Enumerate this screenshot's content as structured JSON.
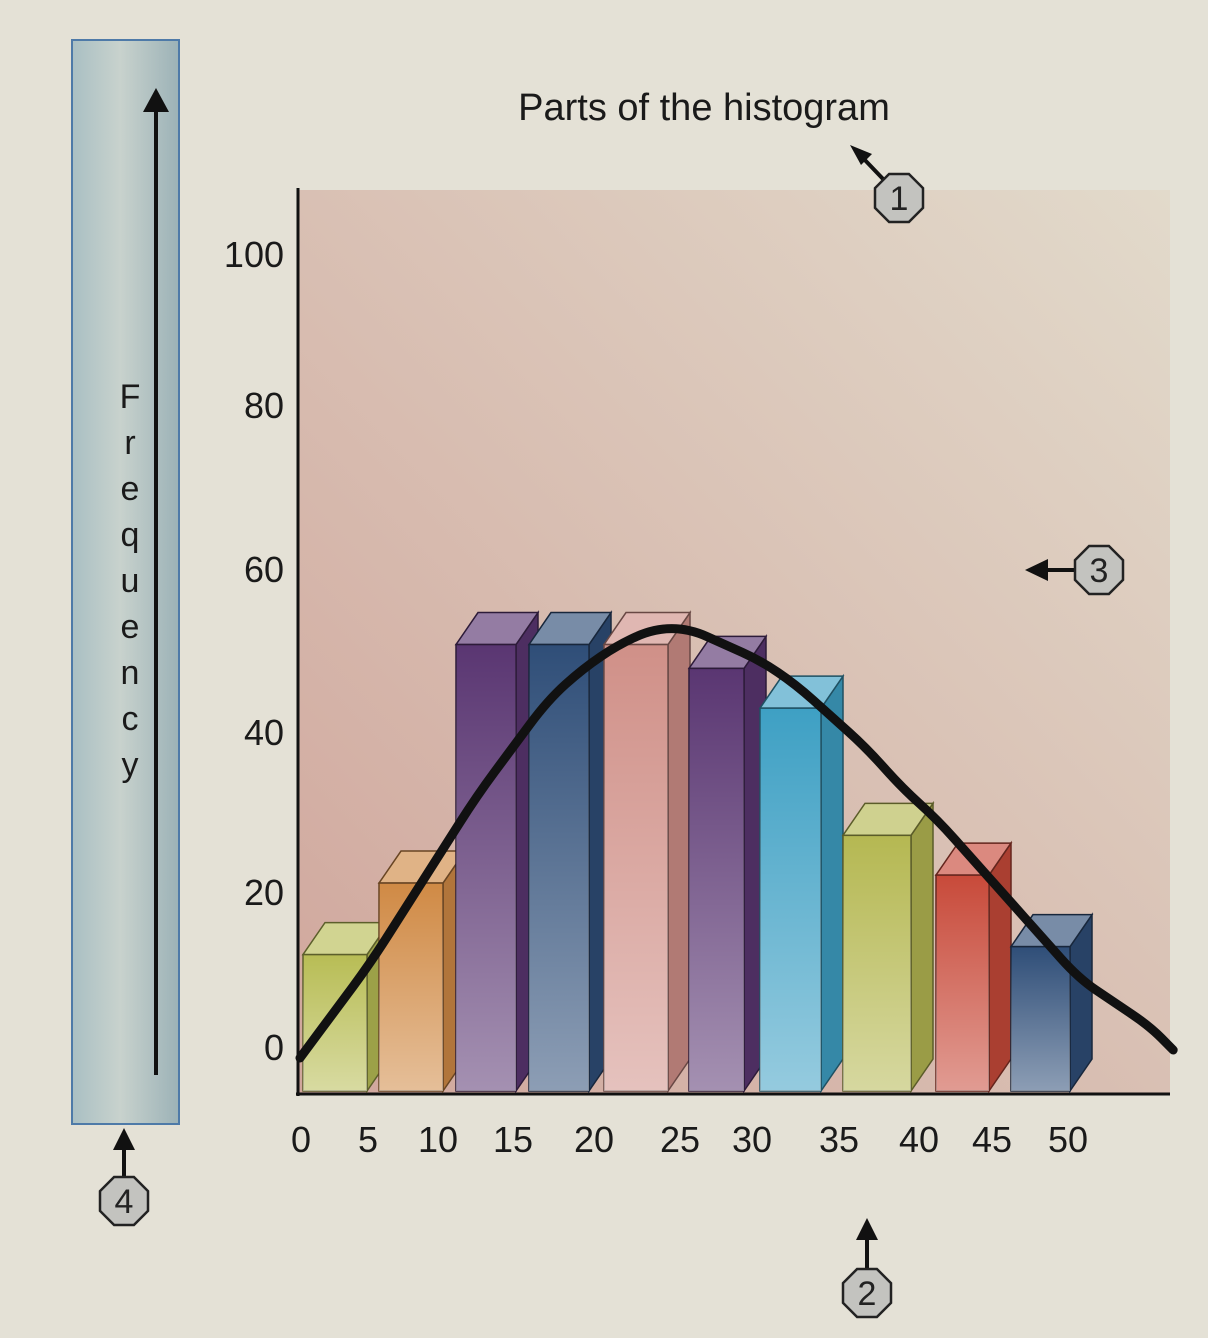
{
  "chart_data": {
    "type": "bar",
    "title": "Parts of the histogram",
    "ylabel": "Frequency",
    "xlabel": "",
    "x_ticks": [
      "0",
      "5",
      "10",
      "15",
      "20",
      "25",
      "30",
      "35",
      "40",
      "45",
      "50"
    ],
    "y_ticks": [
      "0",
      "20",
      "40",
      "60",
      "80",
      "100"
    ],
    "ylim": [
      0,
      105
    ],
    "bars": [
      {
        "value": 12,
        "color": "#b8bd55"
      },
      {
        "value": 21,
        "color": "#d08a45"
      },
      {
        "value": 51,
        "color": "#5a3672"
      },
      {
        "value": 51,
        "color": "#2f4e78"
      },
      {
        "value": 51,
        "color": "#d09088"
      },
      {
        "value": 48,
        "color": "#5a3672"
      },
      {
        "value": 43,
        "color": "#3ea0c4"
      },
      {
        "value": 27,
        "color": "#b5b852"
      },
      {
        "value": 22,
        "color": "#c84a3a"
      },
      {
        "value": 13,
        "color": "#2f4e78"
      }
    ],
    "curve": [
      [
        0,
        -1
      ],
      [
        3,
        5
      ],
      [
        6,
        11
      ],
      [
        9,
        18
      ],
      [
        12,
        25
      ],
      [
        15,
        32
      ],
      [
        18,
        38
      ],
      [
        21,
        44
      ],
      [
        24,
        48
      ],
      [
        27,
        51
      ],
      [
        30,
        53
      ],
      [
        33,
        53
      ],
      [
        36,
        51
      ],
      [
        39,
        49
      ],
      [
        42,
        46
      ],
      [
        45,
        42
      ],
      [
        48,
        38
      ],
      [
        51,
        33
      ],
      [
        54,
        29
      ],
      [
        57,
        24
      ],
      [
        60,
        19
      ],
      [
        63,
        14
      ],
      [
        66,
        9
      ],
      [
        69,
        6
      ],
      [
        72,
        3
      ],
      [
        74,
        0
      ]
    ],
    "grid": false,
    "plot_background": [
      "#d0a69c",
      "#e2dacb"
    ],
    "annotations": [
      "1",
      "2",
      "3",
      "4"
    ]
  }
}
